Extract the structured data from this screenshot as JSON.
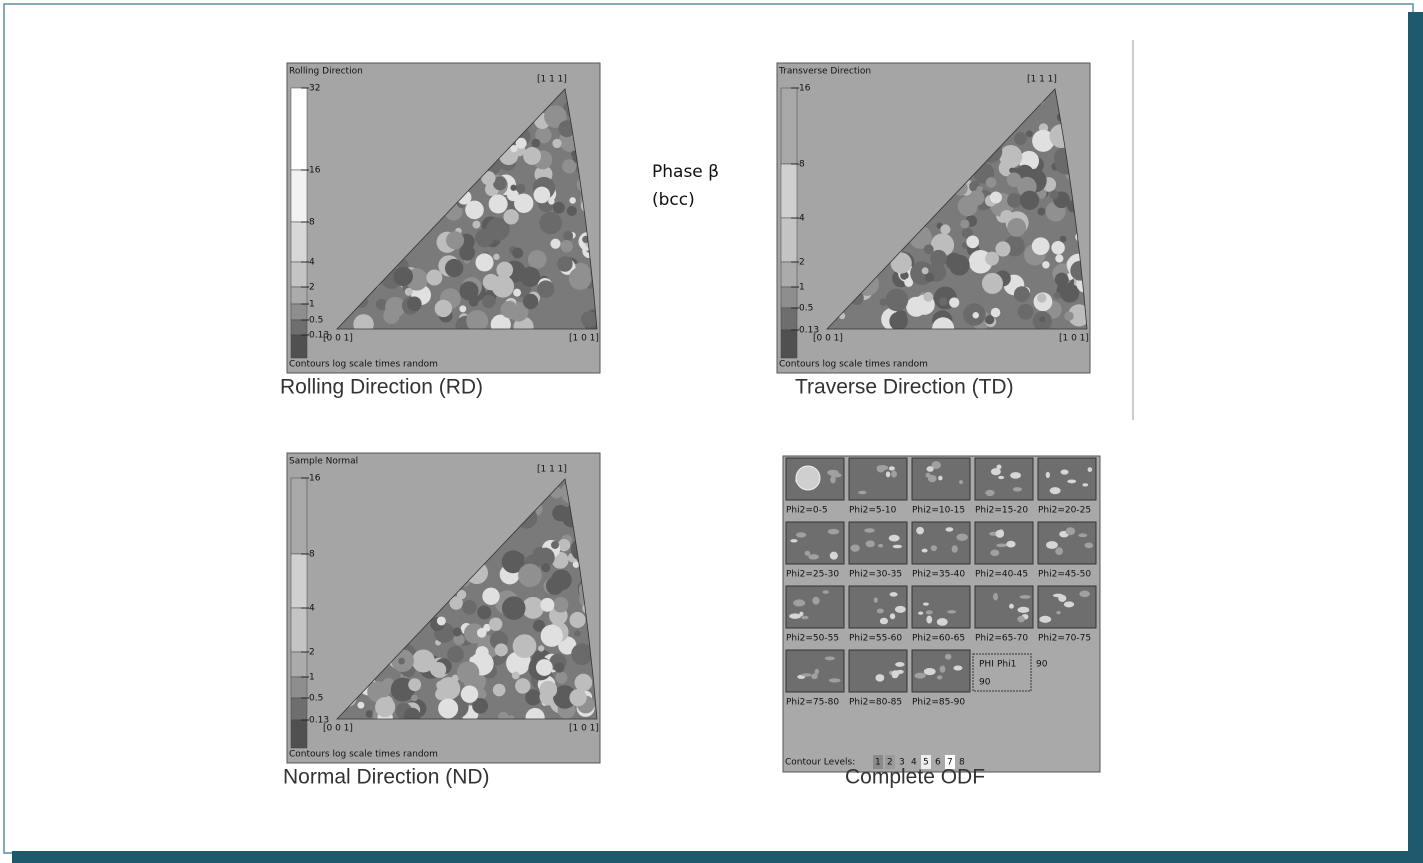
{
  "phase_label": {
    "line1": "Phase β",
    "line2": "(bcc)"
  },
  "panels": [
    {
      "header": "Rolling Direction",
      "scale": [
        "32",
        "16",
        "8",
        "4",
        "2",
        "1",
        "0.5",
        "0.13"
      ],
      "corners": {
        "top": "[1 1 1]",
        "left": "[0 0 1]",
        "right": "[1 0 1]"
      },
      "footer": "Contours log scale times random",
      "caption": "Rolling Direction (RD)"
    },
    {
      "header": "Transverse Direction",
      "scale": [
        "16",
        "8",
        "4",
        "2",
        "1",
        "0.5",
        "0.13"
      ],
      "corners": {
        "top": "[1 1 1]",
        "left": "[0 0 1]",
        "right": "[1 0 1]"
      },
      "footer": "Contours log scale times random",
      "caption": "Traverse Direction (TD)"
    },
    {
      "header": "Sample Normal",
      "scale": [
        "16",
        "8",
        "4",
        "2",
        "1",
        "0.5",
        "0.13"
      ],
      "corners": {
        "top": "[1 1 1]",
        "left": "[0 0 1]",
        "right": "[1 0 1]"
      },
      "footer": "Contours log scale times random",
      "caption": "Normal Direction (ND)"
    }
  ],
  "odf": {
    "sections": [
      "Phi2=0-5",
      "Phi2=5-10",
      "Phi2=10-15",
      "Phi2=15-20",
      "Phi2=20-25",
      "Phi2=25-30",
      "Phi2=30-35",
      "Phi2=35-40",
      "Phi2=40-45",
      "Phi2=45-50",
      "Phi2=50-55",
      "Phi2=55-60",
      "Phi2=60-65",
      "Phi2=65-70",
      "Phi2=70-75",
      "Phi2=75-80",
      "Phi2=80-85",
      "Phi2=85-90"
    ],
    "legend": {
      "phi": "PHI",
      "phi1": "Phi1",
      "phi1_max": "90",
      "phi_max": "90"
    },
    "contour_label": "Contour Levels:",
    "contour_levels": [
      "1",
      "2",
      "3",
      "4",
      "5",
      "6",
      "7",
      "8"
    ],
    "caption": "Complete ODF"
  }
}
